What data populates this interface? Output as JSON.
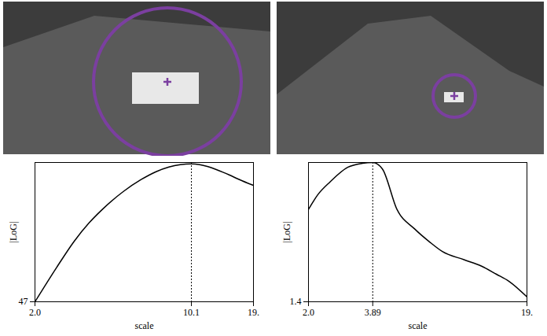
{
  "chart_data": [
    {
      "type": "line",
      "xlabel": "scale",
      "ylabel": "|LoG|",
      "log": "x",
      "color": "#000000",
      "x": [
        2.0,
        2.5,
        3,
        3.5,
        4,
        5,
        6,
        7,
        8,
        9,
        10.1,
        11,
        12,
        13,
        14,
        15,
        16,
        17,
        18,
        19.2
      ],
      "values": [
        47,
        60,
        70,
        77,
        82,
        89,
        93.5,
        96.5,
        98.3,
        99.2,
        99.5,
        99.2,
        98.4,
        97.4,
        96.3,
        95.2,
        94.1,
        93.1,
        92.2,
        91.3
      ],
      "xlim": [
        2,
        19.2
      ],
      "xticks": [
        {
          "value": 2,
          "label": "2.0"
        },
        10.1,
        {
          "value": 19.2,
          "label": "19."
        }
      ],
      "ylim": [
        47,
        100
      ],
      "yticks": [
        47
      ],
      "peak": 10.1
    },
    {
      "type": "line",
      "xlabel": "scale",
      "ylabel": "|LoG|",
      "log": "x",
      "color": "#000000",
      "x": [
        2.0,
        2.2,
        2.5,
        3,
        3.5,
        3.89,
        4.3,
        5,
        6,
        7,
        8,
        10,
        12,
        14,
        16,
        19.2
      ],
      "values": [
        7.1,
        8.0,
        8.8,
        9.7,
        9.95,
        10,
        9.6,
        7.1,
        5.9,
        5.1,
        4.5,
        4.0,
        3.6,
        3.1,
        2.65,
        1.7
      ],
      "xlim": [
        2,
        19.2
      ],
      "xticks": [
        {
          "value": 2,
          "label": "2.0"
        },
        3.89,
        {
          "value": 19.2,
          "label": "19."
        }
      ],
      "ylim": [
        1.4,
        10
      ],
      "yticks": [
        1.4
      ],
      "peak": 3.89
    }
  ]
}
